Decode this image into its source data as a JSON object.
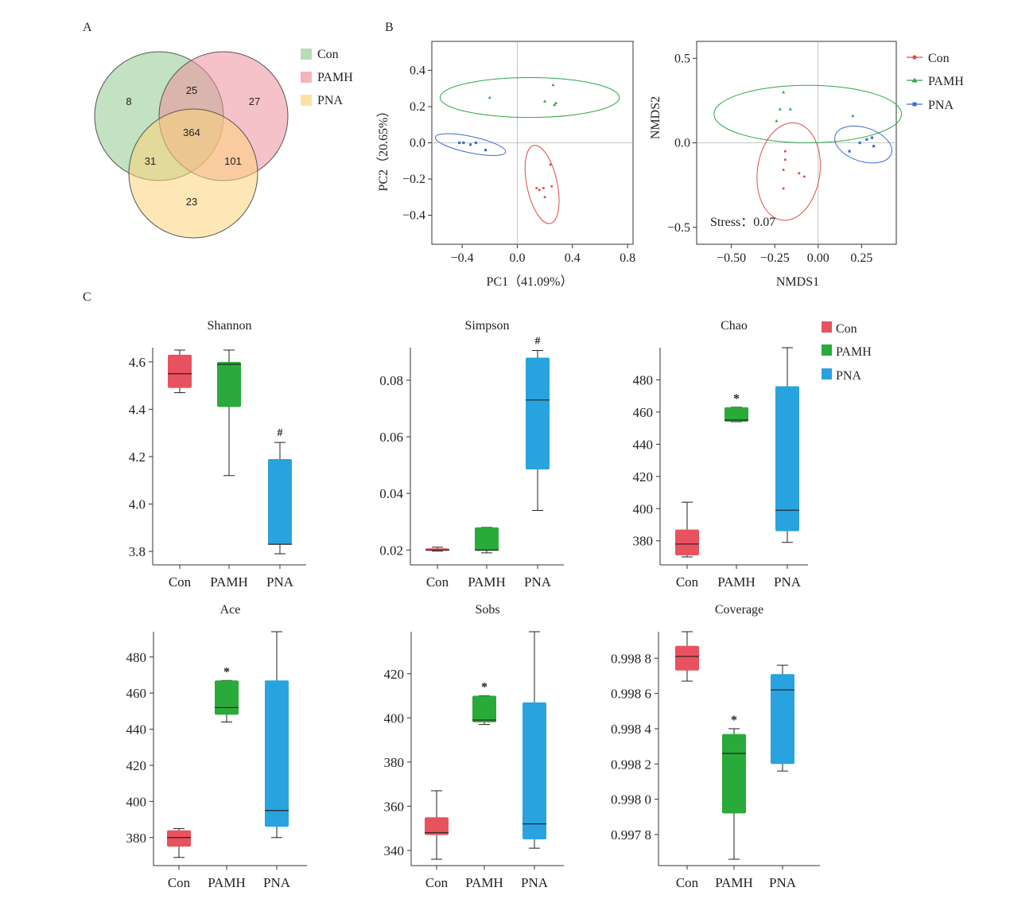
{
  "panel_labels": {
    "a": "A",
    "b": "B",
    "c": "C"
  },
  "colors": {
    "con": "#e8525f",
    "pamh": "#2aaa3a",
    "pna": "#28a3df",
    "venn_con": "#8fca8f",
    "venn_pamh": "#ef8f9c",
    "venn_pna": "#fbd37a",
    "pca_con": "#e04b4b",
    "pca_pamh": "#2fa64a",
    "pca_pna": "#3d6fc9",
    "axis": "#333333",
    "ref": "#b3b3b3"
  },
  "chart_data": [
    {
      "type": "venn",
      "legend": [
        "Con",
        "PAMH",
        "PNA"
      ],
      "sets": [
        "Con",
        "PAMH",
        "PNA"
      ],
      "regions": {
        "con_only": "8",
        "pamh_only": "27",
        "pna_only": "23",
        "con_pamh": "25",
        "con_pna": "31",
        "pamh_pna": "101",
        "all": "364"
      }
    },
    {
      "type": "scatter",
      "xlabel": "PC1（41.09%）",
      "ylabel": "PC2（20.65%）",
      "xlim": [
        -0.62,
        0.84
      ],
      "ylim": [
        -0.56,
        0.56
      ],
      "xticks": [
        -0.4,
        0.0,
        0.4,
        0.8
      ],
      "xtick_labels": [
        "−0.4",
        "0.0",
        "0.4",
        "0.8"
      ],
      "yticks": [
        0.4,
        0.2,
        0.0,
        -0.2,
        -0.4
      ],
      "ytick_labels": [
        "0.4",
        "0.2",
        "0.0",
        "−0.2",
        "−0.4"
      ],
      "series": [
        {
          "name": "Con",
          "x": [
            0.24,
            0.25,
            0.19,
            0.14,
            0.16,
            0.2
          ],
          "y": [
            -0.12,
            -0.24,
            -0.25,
            -0.25,
            -0.26,
            -0.3
          ]
        },
        {
          "name": "PAMH",
          "x": [
            -0.2,
            0.26,
            0.2,
            0.27,
            0.28
          ],
          "y": [
            0.25,
            0.32,
            0.23,
            0.21,
            0.22
          ]
        },
        {
          "name": "PNA",
          "x": [
            -0.42,
            -0.39,
            -0.34,
            -0.3,
            -0.23
          ],
          "y": [
            0.0,
            0.0,
            -0.01,
            0.0,
            -0.04
          ]
        }
      ],
      "ellipses": [
        {
          "name": "Con",
          "cx": 0.18,
          "cy": -0.23,
          "rx": 0.11,
          "ry": 0.22,
          "angle_deg": 12
        },
        {
          "name": "PAMH",
          "cx": 0.09,
          "cy": 0.25,
          "rx": 0.65,
          "ry": 0.11,
          "angle_deg": 0
        },
        {
          "name": "PNA",
          "cx": -0.34,
          "cy": -0.01,
          "rx": 0.26,
          "ry": 0.045,
          "angle_deg": -12
        }
      ]
    },
    {
      "type": "scatter",
      "xlabel": "NMDS1",
      "ylabel": "NMDS2",
      "xlim": [
        -0.7,
        0.45
      ],
      "ylim": [
        -0.6,
        0.6
      ],
      "xticks": [
        -0.5,
        -0.25,
        0.0,
        0.25
      ],
      "xtick_labels": [
        "−0.50",
        "−0.25",
        "0.00",
        "0.25"
      ],
      "yticks": [
        0.5,
        0.0,
        -0.5
      ],
      "ytick_labels": [
        "0.5",
        "0.0",
        "−0.5"
      ],
      "annotation": "Stress：0.07",
      "legend": [
        "Con",
        "PAMH",
        "PNA"
      ],
      "series": [
        {
          "name": "Con",
          "x": [
            -0.19,
            -0.19,
            -0.11,
            -0.08,
            -0.2,
            -0.2
          ],
          "y": [
            -0.05,
            -0.1,
            -0.18,
            -0.2,
            -0.16,
            -0.27
          ]
        },
        {
          "name": "PAMH",
          "x": [
            -0.2,
            -0.22,
            -0.16,
            -0.24,
            0.2
          ],
          "y": [
            0.3,
            0.2,
            0.2,
            0.13,
            0.16
          ]
        },
        {
          "name": "PNA",
          "x": [
            0.18,
            0.24,
            0.28,
            0.31,
            0.32
          ],
          "y": [
            -0.05,
            0.0,
            0.02,
            0.03,
            -0.02
          ]
        }
      ],
      "ellipses": [
        {
          "name": "Con",
          "cx": -0.17,
          "cy": -0.17,
          "rx": 0.18,
          "ry": 0.29,
          "angle_deg": -8
        },
        {
          "name": "PAMH",
          "cx": -0.06,
          "cy": 0.17,
          "rx": 0.54,
          "ry": 0.17,
          "angle_deg": 0
        },
        {
          "name": "PNA",
          "cx": 0.26,
          "cy": -0.01,
          "rx": 0.17,
          "ry": 0.1,
          "angle_deg": -18
        }
      ]
    },
    {
      "type": "box",
      "title": "Shannon",
      "categories": [
        "Con",
        "PAMH",
        "PNA"
      ],
      "ylim": [
        3.77,
        4.66
      ],
      "yticks": [
        3.8,
        4.0,
        4.2,
        4.4,
        4.6
      ],
      "ytick_labels": [
        "3.8",
        "4.0",
        "4.2",
        "4.4",
        "4.6"
      ],
      "boxes": [
        {
          "name": "Con",
          "min": 4.47,
          "q1": 4.49,
          "median": 4.55,
          "q3": 4.63,
          "max": 4.65,
          "mark": ""
        },
        {
          "name": "PAMH",
          "min": 4.12,
          "q1": 4.41,
          "median": 4.59,
          "q3": 4.6,
          "max": 4.65,
          "mark": ""
        },
        {
          "name": "PNA",
          "min": 3.79,
          "q1": 3.83,
          "median": 3.83,
          "q3": 4.19,
          "max": 4.26,
          "mark": "#"
        }
      ]
    },
    {
      "type": "box",
      "title": "Simpson",
      "categories": [
        "Con",
        "PAMH",
        "PNA"
      ],
      "ylim": [
        0.017,
        0.0915
      ],
      "yticks": [
        0.02,
        0.04,
        0.06,
        0.08
      ],
      "ytick_labels": [
        "0.02",
        "0.04",
        "0.06",
        "0.08"
      ],
      "boxes": [
        {
          "name": "Con",
          "min": 0.0196,
          "q1": 0.0197,
          "median": 0.02,
          "q3": 0.0206,
          "max": 0.021,
          "mark": ""
        },
        {
          "name": "PAMH",
          "min": 0.019,
          "q1": 0.0197,
          "median": 0.02,
          "q3": 0.028,
          "max": 0.028,
          "mark": ""
        },
        {
          "name": "PNA",
          "min": 0.034,
          "q1": 0.0485,
          "median": 0.073,
          "q3": 0.088,
          "max": 0.0905,
          "mark": "#"
        }
      ]
    },
    {
      "type": "box",
      "title": "Chao",
      "categories": [
        "Con",
        "PAMH",
        "PNA"
      ],
      "ylim": [
        369,
        500
      ],
      "yticks": [
        380,
        400,
        420,
        440,
        460,
        480
      ],
      "ytick_labels": [
        "380",
        "400",
        "420",
        "440",
        "460",
        "480"
      ],
      "boxes": [
        {
          "name": "Con",
          "min": 370,
          "q1": 371,
          "median": 378,
          "q3": 387,
          "max": 404,
          "mark": ""
        },
        {
          "name": "PAMH",
          "min": 454,
          "q1": 454,
          "median": 455,
          "q3": 463,
          "max": 463,
          "mark": "*"
        },
        {
          "name": "PNA",
          "min": 379,
          "q1": 386,
          "median": 399,
          "q3": 476,
          "max": 500,
          "mark": ""
        }
      ]
    },
    {
      "type": "box",
      "title": "Ace",
      "categories": [
        "Con",
        "PAMH",
        "PNA"
      ],
      "ylim": [
        368,
        494
      ],
      "yticks": [
        380,
        400,
        420,
        440,
        460,
        480
      ],
      "ytick_labels": [
        "380",
        "400",
        "420",
        "440",
        "460",
        "480"
      ],
      "boxes": [
        {
          "name": "Con",
          "min": 369,
          "q1": 375,
          "median": 380,
          "q3": 384,
          "max": 385,
          "mark": ""
        },
        {
          "name": "PAMH",
          "min": 444,
          "q1": 448,
          "median": 452,
          "q3": 467,
          "max": 467,
          "mark": "*"
        },
        {
          "name": "PNA",
          "min": 380,
          "q1": 386,
          "median": 395,
          "q3": 467,
          "max": 494,
          "mark": ""
        }
      ]
    },
    {
      "type": "box",
      "title": "Sobs",
      "categories": [
        "Con",
        "PAMH",
        "PNA"
      ],
      "ylim": [
        336,
        439
      ],
      "yticks": [
        340,
        360,
        380,
        400,
        420
      ],
      "ytick_labels": [
        "340",
        "360",
        "380",
        "400",
        "420"
      ],
      "boxes": [
        {
          "name": "Con",
          "min": 336,
          "q1": 347,
          "median": 348,
          "q3": 355,
          "max": 367,
          "mark": ""
        },
        {
          "name": "PAMH",
          "min": 397,
          "q1": 398,
          "median": 399,
          "q3": 410,
          "max": 410,
          "mark": "*"
        },
        {
          "name": "PNA",
          "min": 341,
          "q1": 345,
          "median": 352,
          "q3": 407,
          "max": 439,
          "mark": ""
        }
      ]
    },
    {
      "type": "box",
      "title": "Coverage",
      "categories": [
        "Con",
        "PAMH",
        "PNA"
      ],
      "ylim": [
        0.99766,
        0.99895
      ],
      "yticks": [
        0.9978,
        0.998,
        0.9982,
        0.9984,
        0.9986,
        0.9988
      ],
      "ytick_labels": [
        "0.997 8",
        "0.998 0",
        "0.998 2",
        "0.998 4",
        "0.998 6",
        "0.998 8"
      ],
      "boxes": [
        {
          "name": "Con",
          "min": 0.99867,
          "q1": 0.99873,
          "median": 0.99881,
          "q3": 0.99887,
          "max": 0.99895,
          "mark": ""
        },
        {
          "name": "PAMH",
          "min": 0.99766,
          "q1": 0.99792,
          "median": 0.99826,
          "q3": 0.99837,
          "max": 0.9984,
          "mark": "*"
        },
        {
          "name": "PNA",
          "min": 0.99816,
          "q1": 0.9982,
          "median": 0.99862,
          "q3": 0.99871,
          "max": 0.99876,
          "mark": ""
        }
      ]
    }
  ],
  "box_legend": [
    "Con",
    "PAMH",
    "PNA"
  ]
}
